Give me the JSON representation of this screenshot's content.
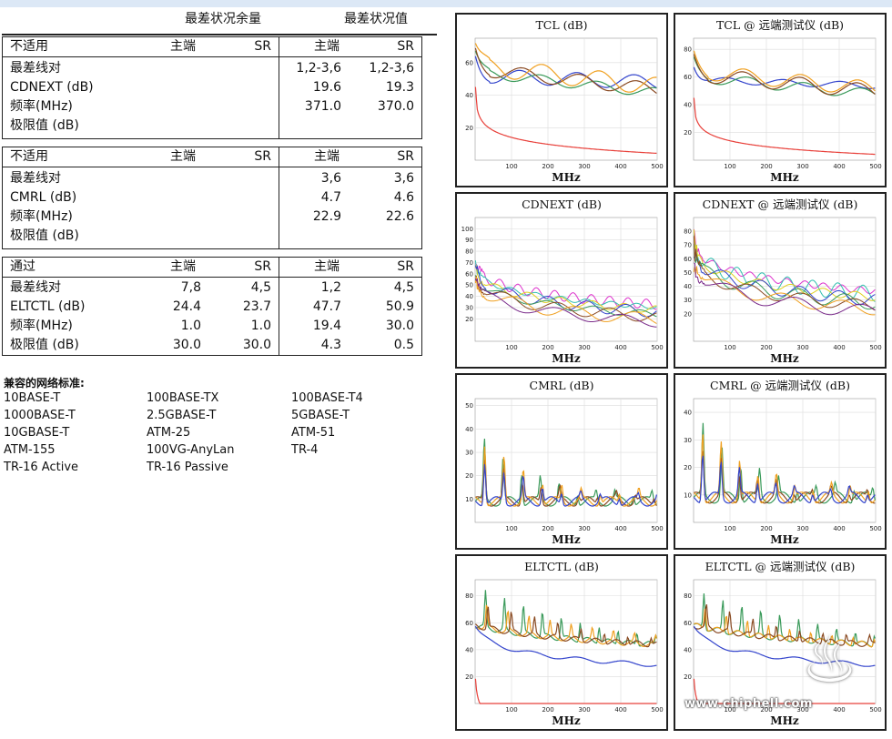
{
  "header": {
    "worst_margin": "最差状况余量",
    "worst_value": "最差状况值"
  },
  "tables": [
    {
      "status": "不适用",
      "cols": [
        "主端",
        "SR",
        "主端",
        "SR"
      ],
      "rows": [
        {
          "label": "最差线对",
          "v": [
            "",
            "",
            "1,2-3,6",
            "1,2-3,6"
          ]
        },
        {
          "label": "CDNEXT (dB)",
          "v": [
            "",
            "",
            "19.6",
            "19.3"
          ]
        },
        {
          "label": "频率(MHz)",
          "v": [
            "",
            "",
            "371.0",
            "370.0"
          ]
        },
        {
          "label": "极限值 (dB)",
          "v": [
            "",
            "",
            "",
            ""
          ]
        }
      ]
    },
    {
      "status": "不适用",
      "cols": [
        "主端",
        "SR",
        "主端",
        "SR"
      ],
      "rows": [
        {
          "label": "最差线对",
          "v": [
            "",
            "",
            "3,6",
            "3,6"
          ]
        },
        {
          "label": "CMRL (dB)",
          "v": [
            "",
            "",
            "4.7",
            "4.6"
          ]
        },
        {
          "label": "频率(MHz)",
          "v": [
            "",
            "",
            "22.9",
            "22.6"
          ]
        },
        {
          "label": "极限值 (dB)",
          "v": [
            "",
            "",
            "",
            ""
          ]
        }
      ]
    },
    {
      "status": "通过",
      "cols": [
        "主端",
        "SR",
        "主端",
        "SR"
      ],
      "rows": [
        {
          "label": "最差线对",
          "v": [
            "7,8",
            "4,5",
            "1,2",
            "4,5"
          ]
        },
        {
          "label": "ELTCTL (dB)",
          "v": [
            "24.4",
            "23.7",
            "47.7",
            "50.9"
          ]
        },
        {
          "label": "频率(MHz)",
          "v": [
            "1.0",
            "1.0",
            "19.4",
            "30.0"
          ]
        },
        {
          "label": "极限值 (dB)",
          "v": [
            "30.0",
            "30.0",
            "4.3",
            "0.5"
          ]
        }
      ]
    }
  ],
  "compat": {
    "title": "兼容的网络标准:",
    "standards": [
      "10BASE-T",
      "100BASE-TX",
      "100BASE-T4",
      "1000BASE-T",
      "2.5GBASE-T",
      "5GBASE-T",
      "10GBASE-T",
      "ATM-25",
      "ATM-51",
      "ATM-155",
      "100VG-AnyLan",
      "TR-4",
      "TR-16 Active",
      "TR-16 Passive"
    ]
  },
  "charts": [
    {
      "title": "TCL (dB)",
      "yticks": [
        20,
        40,
        60
      ],
      "ymax": 75,
      "xlabel": "MHz"
    },
    {
      "title": "TCL @ 远端测试仪 (dB)",
      "yticks": [
        20,
        40,
        60,
        80
      ],
      "ymax": 88,
      "xlabel": "MHz"
    },
    {
      "title": "CDNEXT (dB)",
      "yticks": [
        20,
        30,
        40,
        50,
        60,
        70,
        80,
        90,
        100
      ],
      "ymax": 110,
      "xlabel": "MHz"
    },
    {
      "title": "CDNEXT @ 远端测试仪 (dB)",
      "yticks": [
        20,
        30,
        40,
        50,
        60,
        70,
        80
      ],
      "ymax": 90,
      "xlabel": "MHz"
    },
    {
      "title": "CMRL (dB)",
      "yticks": [
        10,
        20,
        30,
        40,
        50
      ],
      "ymax": 53,
      "xlabel": "MHz"
    },
    {
      "title": "CMRL @ 远端测试仪 (dB)",
      "yticks": [
        10,
        20,
        30,
        40
      ],
      "ymax": 45,
      "xlabel": "MHz"
    },
    {
      "title": "ELTCTL (dB)",
      "yticks": [
        20,
        40,
        60,
        80
      ],
      "ymax": 92,
      "xlabel": "MHz"
    },
    {
      "title": "ELTCTL @ 远端测试仪 (dB)",
      "yticks": [
        20,
        40,
        60,
        80
      ],
      "ymax": 92,
      "xlabel": "MHz"
    }
  ],
  "xticks": [
    100,
    200,
    300,
    400,
    500
  ],
  "colors": {
    "limit": "#e8403a",
    "blue": "#3344cc",
    "green": "#3a9a5a",
    "orange": "#f0a020",
    "brown": "#8a4a22",
    "magenta": "#dd33cc",
    "cyan": "#33c0b0",
    "yellow": "#e0d020",
    "purple": "#7a2a8a"
  },
  "watermark": "www.chiphell.com"
}
